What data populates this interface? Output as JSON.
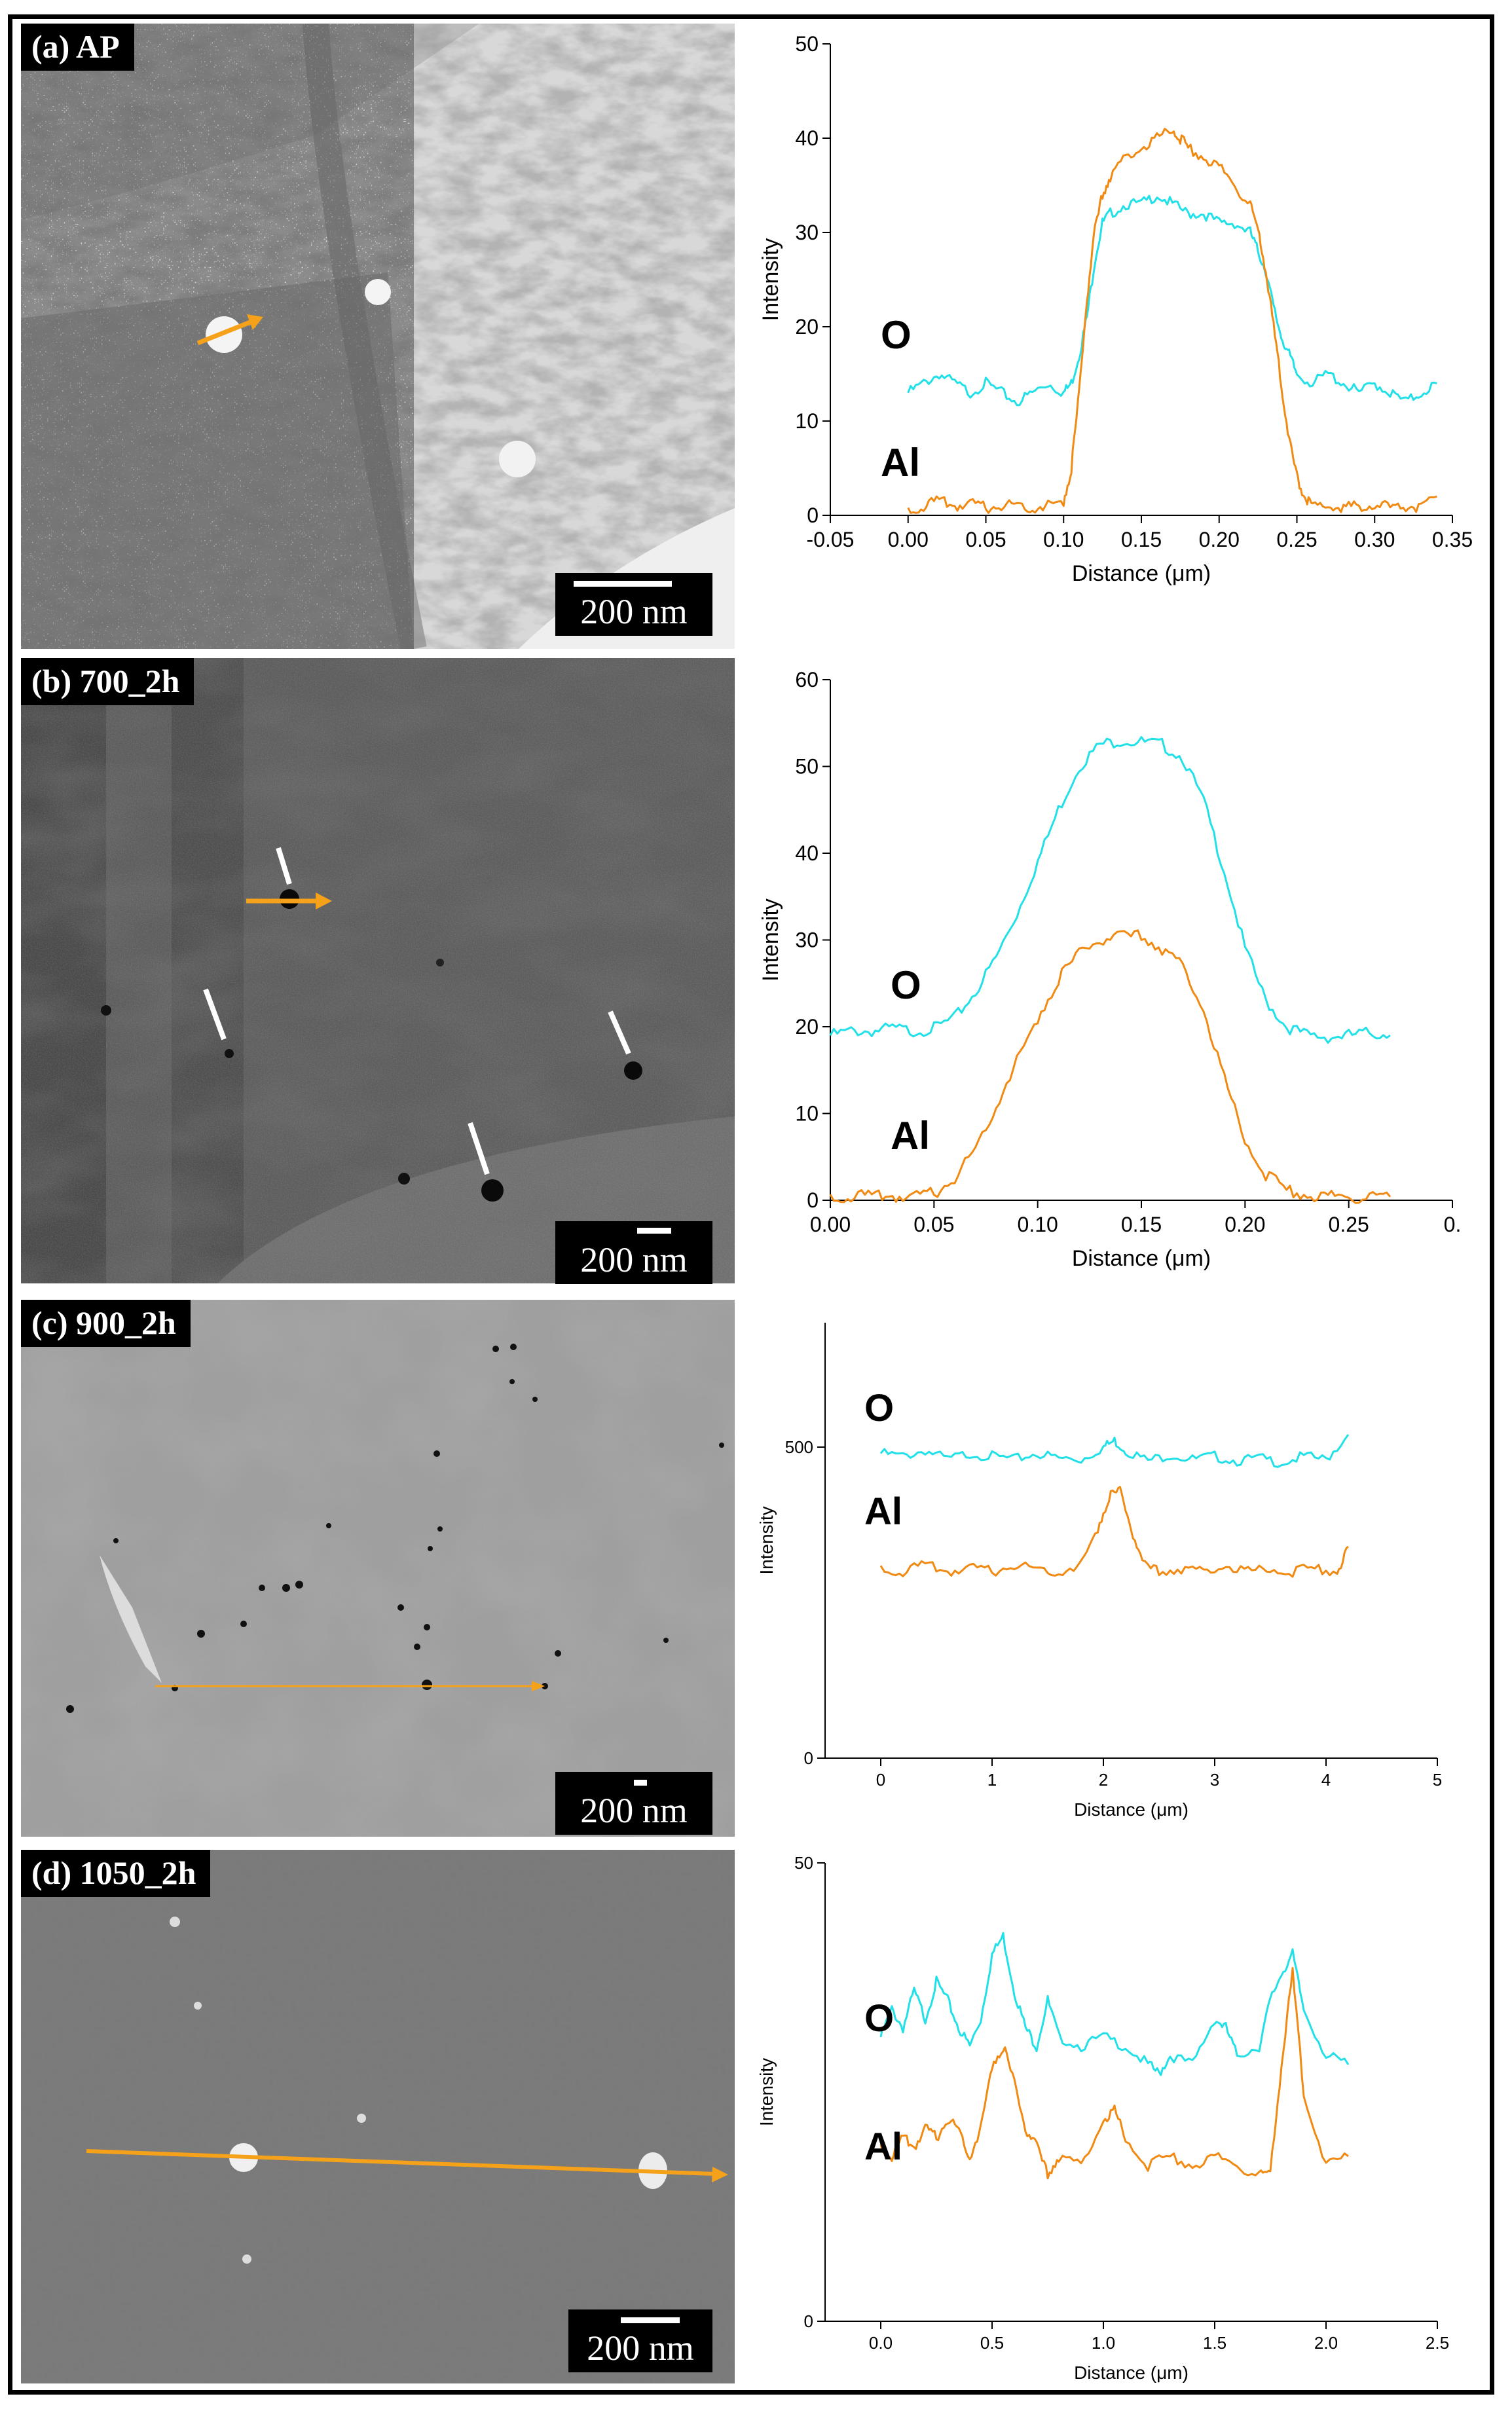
{
  "panels": [
    {
      "label": "(a) AP",
      "scale_bar": "200 nm",
      "chart_data": {
        "type": "line",
        "title": "",
        "xlabel": "Distance (μm)",
        "ylabel": "Intensity",
        "xlim": [
          -0.05,
          0.35
        ],
        "ylim": [
          0,
          50
        ],
        "xticks": [
          "-0.05",
          "0.00",
          "0.05",
          "0.10",
          "0.15",
          "0.20",
          "0.25",
          "0.30",
          "0.35"
        ],
        "yticks": [
          "0",
          "10",
          "20",
          "30",
          "40",
          "50"
        ],
        "grid": false,
        "series_labels": [
          "O",
          "Al"
        ],
        "series": [
          {
            "name": "O",
            "color": "#22e0e8",
            "x": [
              0.0,
              0.01,
              0.02,
              0.03,
              0.04,
              0.05,
              0.06,
              0.07,
              0.08,
              0.09,
              0.1,
              0.105,
              0.11,
              0.115,
              0.12,
              0.125,
              0.13,
              0.14,
              0.15,
              0.16,
              0.17,
              0.18,
              0.19,
              0.2,
              0.21,
              0.22,
              0.225,
              0.23,
              0.235,
              0.24,
              0.245,
              0.25,
              0.26,
              0.27,
              0.28,
              0.29,
              0.3,
              0.31,
              0.32,
              0.33,
              0.34
            ],
            "y": [
              13,
              14,
              15,
              14,
              13,
              14,
              13,
              12,
              13,
              14,
              13,
              14,
              17,
              21,
              27,
              31,
              32,
              33,
              33,
              34,
              33,
              32,
              32,
              31,
              31,
              30,
              28,
              26,
              22,
              19,
              17,
              15,
              14,
              15,
              14,
              13,
              14,
              13,
              12,
              13,
              14
            ]
          },
          {
            "name": "Al",
            "color": "#f08a12",
            "x": [
              0.0,
              0.01,
              0.02,
              0.03,
              0.04,
              0.05,
              0.06,
              0.07,
              0.08,
              0.09,
              0.1,
              0.105,
              0.11,
              0.115,
              0.12,
              0.125,
              0.13,
              0.14,
              0.15,
              0.16,
              0.17,
              0.175,
              0.18,
              0.19,
              0.2,
              0.21,
              0.22,
              0.225,
              0.23,
              0.235,
              0.24,
              0.245,
              0.25,
              0.255,
              0.26,
              0.27,
              0.28,
              0.29,
              0.3,
              0.31,
              0.32,
              0.33,
              0.34
            ],
            "y": [
              0.5,
              1,
              1.5,
              1,
              1.2,
              0.8,
              1,
              1.2,
              0.8,
              1,
              1.5,
              5,
              13,
              23,
              30,
              34,
              36,
              38,
              39,
              40,
              41,
              40,
              39,
              38,
              37,
              35,
              33,
              30,
              26,
              20,
              14,
              8,
              4,
              2,
              1,
              1,
              0.8,
              1,
              1.2,
              0.8,
              1,
              0.7,
              2
            ]
          }
        ]
      }
    },
    {
      "label": "(b) 700_2h",
      "scale_bar": "200 nm",
      "chart_data": {
        "type": "line",
        "title": "",
        "xlabel": "Distance (μm)",
        "ylabel": "Intensity",
        "xlim": [
          0,
          0.3
        ],
        "ylim": [
          0,
          60
        ],
        "xticks": [
          "0.00",
          "0.05",
          "0.10",
          "0.15",
          "0.20",
          "0.25",
          "0."
        ],
        "yticks": [
          "0",
          "10",
          "20",
          "30",
          "40",
          "50",
          "60"
        ],
        "grid": false,
        "series_labels": [
          "O",
          "Al"
        ],
        "series": [
          {
            "name": "O",
            "color": "#22e0e8",
            "x": [
              0.0,
              0.01,
              0.02,
              0.03,
              0.04,
              0.05,
              0.06,
              0.07,
              0.08,
              0.09,
              0.1,
              0.11,
              0.12,
              0.13,
              0.14,
              0.15,
              0.16,
              0.17,
              0.18,
              0.19,
              0.2,
              0.21,
              0.22,
              0.23,
              0.24,
              0.25,
              0.26,
              0.27
            ],
            "y": [
              19,
              19.5,
              19.5,
              19.8,
              19.5,
              19.8,
              21,
              24,
              28,
              33,
              39,
              45,
              50,
              52.5,
              53,
              52.8,
              52.5,
              51,
              46,
              38,
              29,
              23,
              20,
              19,
              18.8,
              19,
              19.3,
              19
            ]
          },
          {
            "name": "Al",
            "color": "#f08a12",
            "x": [
              0.0,
              0.01,
              0.02,
              0.03,
              0.04,
              0.05,
              0.06,
              0.07,
              0.08,
              0.09,
              0.1,
              0.11,
              0.12,
              0.13,
              0.14,
              0.15,
              0.16,
              0.17,
              0.18,
              0.19,
              0.2,
              0.21,
              0.22,
              0.23,
              0.24,
              0.25,
              0.26,
              0.27
            ],
            "y": [
              0.3,
              0.5,
              0.4,
              0.5,
              0.3,
              0.8,
              2.5,
              6,
              11,
              16,
              21,
              25.5,
              28.5,
              30,
              30.3,
              30.5,
              29,
              27,
              22,
              14,
              7,
              3,
              1.2,
              0.6,
              0.5,
              0.4,
              0.4,
              0.4
            ]
          }
        ]
      }
    },
    {
      "label": "(c) 900_2h",
      "scale_bar": "200 nm",
      "chart_data": {
        "type": "line",
        "title": "",
        "xlabel": "Distance (μm)",
        "ylabel": "Intensity",
        "xlim": [
          -0.5,
          5
        ],
        "ylim": [
          0,
          700
        ],
        "xticks": [
          "0",
          "1",
          "2",
          "3",
          "4",
          "5"
        ],
        "yticks": [
          "0",
          "500"
        ],
        "grid": false,
        "series_labels": [
          "O",
          "Al"
        ],
        "series": [
          {
            "name": "O",
            "color": "#22e0e8",
            "x": [
              0,
              0.2,
              0.4,
              0.6,
              0.8,
              1.0,
              1.2,
              1.4,
              1.6,
              1.8,
              2.0,
              2.1,
              2.2,
              2.4,
              2.6,
              2.8,
              3.0,
              3.2,
              3.4,
              3.6,
              3.8,
              4.0,
              4.2
            ],
            "y": [
              490,
              485,
              495,
              480,
              490,
              485,
              480,
              490,
              482,
              480,
              500,
              510,
              495,
              478,
              488,
              480,
              485,
              478,
              482,
              475,
              485,
              480,
              520
            ]
          },
          {
            "name": "Al",
            "color": "#f08a12",
            "x": [
              0,
              0.2,
              0.4,
              0.6,
              0.8,
              1.0,
              1.2,
              1.4,
              1.6,
              1.8,
              1.95,
              2.05,
              2.15,
              2.25,
              2.35,
              2.5,
              2.7,
              2.9,
              3.1,
              3.3,
              3.5,
              3.7,
              3.9,
              4.1,
              4.2
            ],
            "y": [
              305,
              300,
              310,
              300,
              305,
              300,
              310,
              305,
              300,
              310,
              370,
              420,
              430,
              370,
              310,
              300,
              305,
              300,
              310,
              300,
              305,
              300,
              305,
              300,
              340
            ]
          }
        ]
      }
    },
    {
      "label": "(d) 1050_2h",
      "scale_bar": "200 nm",
      "chart_data": {
        "type": "line",
        "title": "",
        "xlabel": "Distance (μm)",
        "ylabel": "Intensity",
        "xlim": [
          -0.25,
          2.5
        ],
        "ylim": [
          0,
          50
        ],
        "xticks": [
          "0.0",
          "0.5",
          "1.0",
          "1.5",
          "2.0",
          "2.5"
        ],
        "yticks": [
          "0",
          "50"
        ],
        "grid": false,
        "series_labels": [
          "O",
          "Al"
        ],
        "series": [
          {
            "name": "O",
            "color": "#22e0e8",
            "x": [
              0,
              0.05,
              0.1,
              0.15,
              0.2,
              0.25,
              0.3,
              0.35,
              0.4,
              0.45,
              0.5,
              0.55,
              0.6,
              0.65,
              0.7,
              0.75,
              0.8,
              0.9,
              1.0,
              1.1,
              1.2,
              1.25,
              1.3,
              1.4,
              1.5,
              1.55,
              1.6,
              1.7,
              1.75,
              1.8,
              1.85,
              1.9,
              2.0,
              2.1
            ],
            "y": [
              31,
              34,
              32,
              36,
              33,
              37,
              35,
              32,
              30,
              33,
              40,
              42,
              36,
              32,
              30,
              35,
              31,
              30,
              31,
              30,
              28,
              27,
              29,
              28,
              33,
              32,
              29,
              30,
              35,
              38,
              40,
              34,
              29,
              28
            ]
          },
          {
            "name": "Al",
            "color": "#f08a12",
            "x": [
              0,
              0.05,
              0.1,
              0.15,
              0.2,
              0.25,
              0.3,
              0.35,
              0.4,
              0.45,
              0.5,
              0.55,
              0.6,
              0.65,
              0.7,
              0.75,
              0.8,
              0.9,
              1.0,
              1.05,
              1.1,
              1.2,
              1.3,
              1.4,
              1.5,
              1.6,
              1.7,
              1.75,
              1.8,
              1.85,
              1.9,
              2.0,
              2.1
            ],
            "y": [
              19,
              18,
              20,
              19,
              21,
              20,
              22,
              21,
              18,
              21,
              28,
              30,
              26,
              21,
              19,
              16,
              18,
              17,
              22,
              23,
              20,
              17,
              18,
              17,
              18,
              17,
              16,
              16,
              28,
              38,
              25,
              17,
              18
            ]
          }
        ]
      }
    }
  ]
}
